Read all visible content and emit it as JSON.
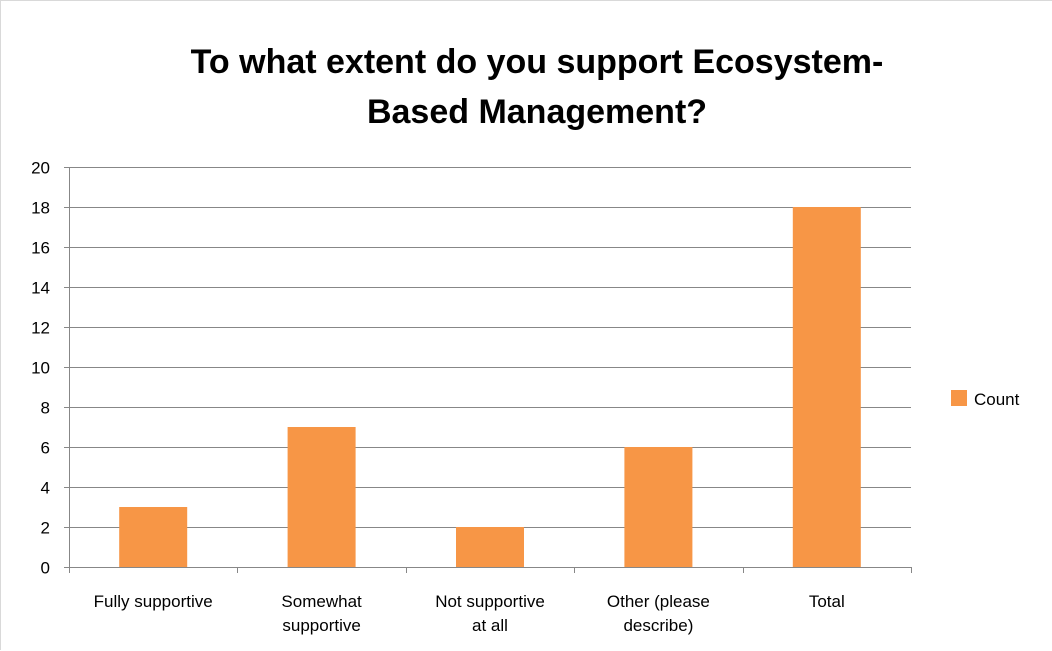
{
  "chart_data": {
    "type": "bar",
    "title_lines": [
      "To what extent do you support Ecosystem-",
      "Based Management?"
    ],
    "categories": [
      [
        "Fully supportive"
      ],
      [
        "Somewhat",
        "supportive"
      ],
      [
        "Not supportive",
        "at all"
      ],
      [
        "Other (please",
        "describe)"
      ],
      [
        "Total"
      ]
    ],
    "series": [
      {
        "name": "Count",
        "values": [
          3,
          7,
          2,
          6,
          18
        ],
        "color": "#F79646"
      }
    ],
    "ylim": [
      0,
      20
    ],
    "yticks": [
      "0",
      "2",
      "4",
      "6",
      "8",
      "10",
      "12",
      "14",
      "16",
      "18",
      "20"
    ],
    "grid": true,
    "legend_position": "right",
    "colors": {
      "gridline": "#878787",
      "axis": "#878787",
      "bar": "#F79646"
    }
  }
}
